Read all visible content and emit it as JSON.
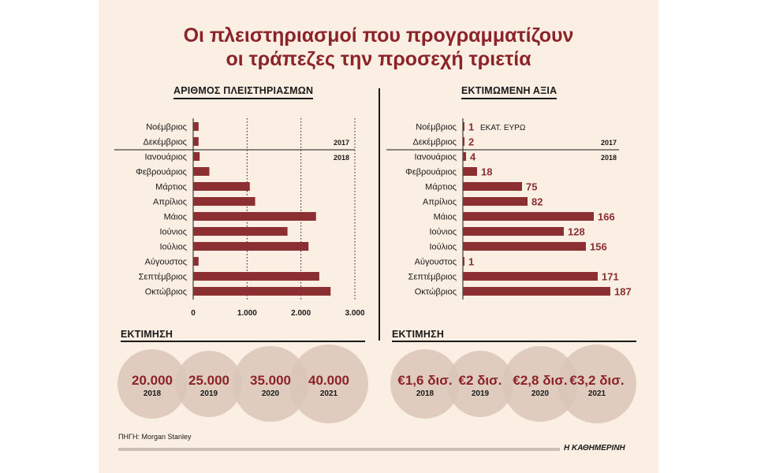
{
  "title_line1": "Οι πλειστηριασμοί που προγραμματίζουν",
  "title_line2": "οι τράπεζες την προσεχή τριετία",
  "left_heading": "ΑΡΙΘΜΟΣ ΠΛΕΙΣΤΗΡΙΑΣΜΩΝ",
  "right_heading": "ΕΚΤΙΜΩΜΕΝΗ ΑΞΙΑ",
  "year_2017": "2017",
  "year_2018": "2018",
  "unit_label": "ΕΚΑΤ. ΕΥΡΩ",
  "estimate_heading": "ΕΚΤΙΜΗΣΗ",
  "source": "ΠΗΓΗ: Morgan Stanley",
  "brand": "Η ΚΑΘΗΜΕΡΙΝΗ",
  "colors": {
    "bar": "#8c2f33",
    "title": "#8c2329",
    "bubble": "#d9c6b8"
  },
  "chart_data": [
    {
      "type": "bar",
      "orientation": "horizontal",
      "title": "ΑΡΙΘΜΟΣ ΠΛΕΙΣΤΗΡΙΑΣΜΩΝ",
      "categories": [
        "Νοέμβριος",
        "Δεκέμβριος",
        "Ιανουάριος",
        "Φεβρουάριος",
        "Μάρτιος",
        "Απρίλιος",
        "Μάιος",
        "Ιούνιος",
        "Ιούλιος",
        "Αύγουστος",
        "Σεπτέμβριος",
        "Οκτώβριος"
      ],
      "values": [
        100,
        100,
        120,
        300,
        1050,
        1150,
        2280,
        1750,
        2140,
        100,
        2340,
        2550
      ],
      "xlim": [
        0,
        3000
      ],
      "ticks": [
        0,
        1000,
        2000,
        3000
      ],
      "tick_labels": [
        "0",
        "1.000",
        "2.000",
        "3.000"
      ],
      "grid": "dotted-vertical"
    },
    {
      "type": "bar",
      "orientation": "horizontal",
      "title": "ΕΚΤΙΜΩΜΕΝΗ ΑΞΙΑ",
      "categories": [
        "Νοέμβριος",
        "Δεκέμβριος",
        "Ιανουάριος",
        "Φεβρουάριος",
        "Μάρτιος",
        "Απρίλιος",
        "Μάιος",
        "Ιούνιος",
        "Ιούλιος",
        "Αύγουστος",
        "Σεπτέμβριος",
        "Οκτώβριος"
      ],
      "values": [
        1,
        2,
        4,
        18,
        75,
        82,
        166,
        128,
        156,
        1,
        171,
        187
      ],
      "labels": [
        "1",
        "2",
        "4",
        "18",
        "75",
        "82",
        "166",
        "128",
        "156",
        "1",
        "171",
        "187"
      ],
      "unit": "ΕΚΑΤ. ΕΥΡΩ"
    }
  ],
  "estimate_left": [
    {
      "value": "20.000",
      "year": "2018"
    },
    {
      "value": "25.000",
      "year": "2019"
    },
    {
      "value": "35.000",
      "year": "2020"
    },
    {
      "value": "40.000",
      "year": "2021"
    }
  ],
  "estimate_right": [
    {
      "value": "€1,6 δισ.",
      "year": "2018"
    },
    {
      "value": "€2 δισ.",
      "year": "2019"
    },
    {
      "value": "€2,8 δισ.",
      "year": "2020"
    },
    {
      "value": "€3,2 δισ.",
      "year": "2021"
    }
  ]
}
